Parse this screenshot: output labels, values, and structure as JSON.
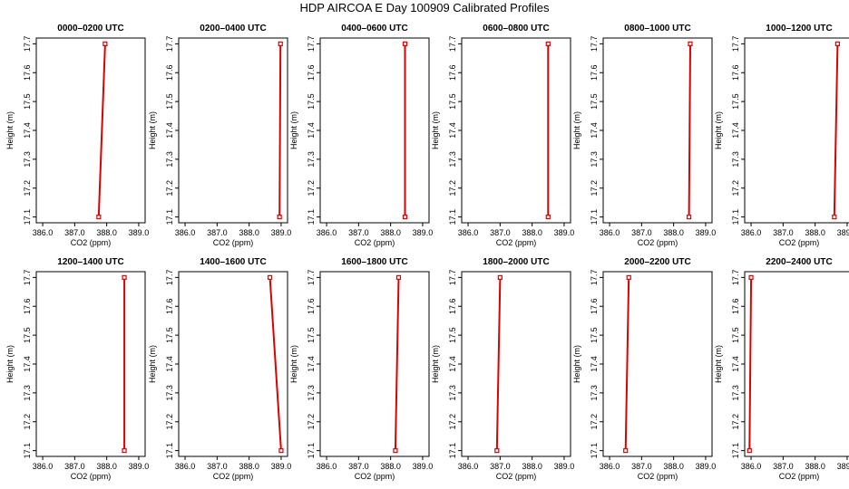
{
  "title": "HDP AIRCOA E  Day 100909  Calibrated Profiles",
  "colors": {
    "series": "#dd0000",
    "axis": "#000000",
    "background": "#ffffff"
  },
  "chart_data": {
    "type": "line",
    "xlabel": "CO2 (ppm)",
    "ylabel": "Height (m)",
    "xlim": [
      385.8,
      389.2
    ],
    "ylim": [
      17.08,
      17.72
    ],
    "xticks": [
      "386.0",
      "387.0",
      "388.0",
      "389.0"
    ],
    "yticks": [
      "17.1",
      "17.2",
      "17.3",
      "17.4",
      "17.5",
      "17.6",
      "17.7"
    ],
    "grid": false,
    "panels": [
      {
        "title": "0000–0200 UTC",
        "points": [
          {
            "x": 387.75,
            "y": 17.1
          },
          {
            "x": 387.95,
            "y": 17.7
          }
        ]
      },
      {
        "title": "0200–0400 UTC",
        "points": [
          {
            "x": 388.95,
            "y": 17.1
          },
          {
            "x": 388.98,
            "y": 17.7
          }
        ]
      },
      {
        "title": "0400–0600 UTC",
        "points": [
          {
            "x": 388.45,
            "y": 17.1
          },
          {
            "x": 388.45,
            "y": 17.7
          }
        ]
      },
      {
        "title": "0600–0800 UTC",
        "points": [
          {
            "x": 388.5,
            "y": 17.1
          },
          {
            "x": 388.5,
            "y": 17.7
          }
        ]
      },
      {
        "title": "0800–1000 UTC",
        "points": [
          {
            "x": 388.48,
            "y": 17.1
          },
          {
            "x": 388.52,
            "y": 17.7
          }
        ]
      },
      {
        "title": "1000–1200 UTC",
        "points": [
          {
            "x": 388.6,
            "y": 17.1
          },
          {
            "x": 388.7,
            "y": 17.7
          }
        ]
      },
      {
        "title": "1200–1400 UTC",
        "points": [
          {
            "x": 388.55,
            "y": 17.1
          },
          {
            "x": 388.55,
            "y": 17.7
          }
        ]
      },
      {
        "title": "1400–1600 UTC",
        "points": [
          {
            "x": 388.65,
            "y": 17.7
          },
          {
            "x": 389.0,
            "y": 17.1
          }
        ]
      },
      {
        "title": "1600–1800 UTC",
        "points": [
          {
            "x": 388.15,
            "y": 17.1
          },
          {
            "x": 388.25,
            "y": 17.7
          }
        ]
      },
      {
        "title": "1800–2000 UTC",
        "points": [
          {
            "x": 386.9,
            "y": 17.1
          },
          {
            "x": 387.0,
            "y": 17.7
          }
        ]
      },
      {
        "title": "2000–2200 UTC",
        "points": [
          {
            "x": 386.5,
            "y": 17.1
          },
          {
            "x": 386.6,
            "y": 17.7
          }
        ]
      },
      {
        "title": "2200–2400 UTC",
        "points": [
          {
            "x": 385.95,
            "y": 17.1
          },
          {
            "x": 386.0,
            "y": 17.7
          }
        ]
      }
    ]
  }
}
